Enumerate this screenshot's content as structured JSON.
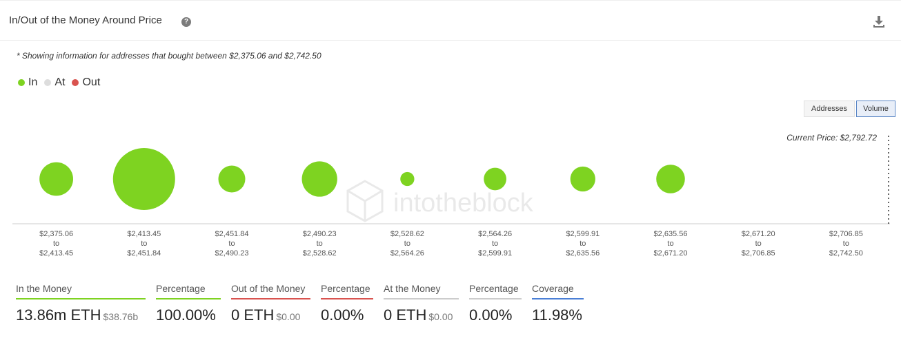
{
  "header": {
    "title": "In/Out of the Money Around Price",
    "help_icon": "question-circle-icon",
    "download_icon": "download-icon"
  },
  "note": "* Showing information for addresses that bought between $2,375.06 and $2,742.50",
  "legend": [
    {
      "label": "In",
      "color": "#7ed321"
    },
    {
      "label": "At",
      "color": "#dddddd"
    },
    {
      "label": "Out",
      "color": "#d9534f"
    }
  ],
  "toggles": {
    "addresses": "Addresses",
    "volume": "Volume",
    "active": "Volume"
  },
  "current_price": "Current Price: $2,792.72",
  "watermark": "intotheblock",
  "chart_data": {
    "type": "scatter",
    "title": "",
    "encoding": "bubble size = volume",
    "categories": [
      {
        "from": "$2,375.06",
        "to": "$2,413.45",
        "status": "In"
      },
      {
        "from": "$2,413.45",
        "to": "$2,451.84",
        "status": "In"
      },
      {
        "from": "$2,451.84",
        "to": "$2,490.23",
        "status": "In"
      },
      {
        "from": "$2,490.23",
        "to": "$2,528.62",
        "status": "In"
      },
      {
        "from": "$2,528.62",
        "to": "$2,564.26",
        "status": "In"
      },
      {
        "from": "$2,564.26",
        "to": "$2,599.91",
        "status": "In"
      },
      {
        "from": "$2,599.91",
        "to": "$2,635.56",
        "status": "In"
      },
      {
        "from": "$2,635.56",
        "to": "$2,671.20",
        "status": "In"
      },
      {
        "from": "$2,671.20",
        "to": "$2,706.85",
        "status": "In"
      },
      {
        "from": "$2,706.85",
        "to": "$2,742.50",
        "status": "In"
      }
    ],
    "to_word": "to",
    "values": [
      2.9,
      9.85,
      1.85,
      3.2,
      0.5,
      1.3,
      1.6,
      2.1,
      0,
      0
    ],
    "colors": {
      "In": "#7ed321",
      "At": "#dddddd",
      "Out": "#d9534f"
    }
  },
  "stats": [
    {
      "label": "In the Money",
      "value": "13.86m ETH",
      "sub": "$38.76b",
      "color": "#7ed321"
    },
    {
      "label": "Percentage",
      "value": "100.00%",
      "sub": "",
      "color": "#7ed321"
    },
    {
      "label": "Out of the Money",
      "value": "0 ETH",
      "sub": "$0.00",
      "color": "#d9534f"
    },
    {
      "label": "Percentage",
      "value": "0.00%",
      "sub": "",
      "color": "#d9534f"
    },
    {
      "label": "At the Money",
      "value": "0 ETH",
      "sub": "$0.00",
      "color": "#cccccc"
    },
    {
      "label": "Percentage",
      "value": "0.00%",
      "sub": "",
      "color": "#cccccc"
    },
    {
      "label": "Coverage",
      "value": "11.98%",
      "sub": "",
      "color": "#4a7fd6"
    }
  ]
}
